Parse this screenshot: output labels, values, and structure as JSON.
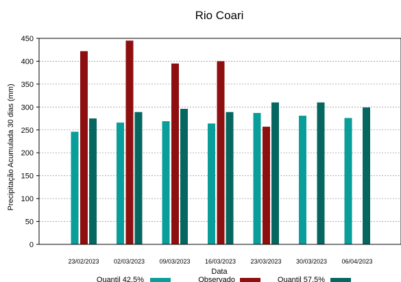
{
  "chart_data": {
    "type": "bar",
    "title": "Rio Coari",
    "xlabel": "Data",
    "ylabel": "Precipitação Acumulada 30 dias (mm)",
    "ylim": [
      0,
      450
    ],
    "yticks": [
      0,
      50,
      100,
      150,
      200,
      250,
      300,
      350,
      400,
      450
    ],
    "grid": true,
    "legend_position": "bottom",
    "categories": [
      "23/02/2023",
      "02/03/2023",
      "09/03/2023",
      "16/03/2023",
      "23/03/2023",
      "30/03/2023",
      "06/04/2023"
    ],
    "series": [
      {
        "name": "Quantil 42.5%",
        "color": "#0a9e9a",
        "values": [
          246,
          266,
          269,
          264,
          287,
          281,
          276
        ]
      },
      {
        "name": "Observado",
        "color": "#8e0f0f",
        "values": [
          422,
          445,
          395,
          400,
          257,
          null,
          null
        ]
      },
      {
        "name": "Quantil 57.5%",
        "color": "#05675f",
        "values": [
          275,
          289,
          296,
          289,
          310,
          310,
          299
        ]
      }
    ]
  }
}
